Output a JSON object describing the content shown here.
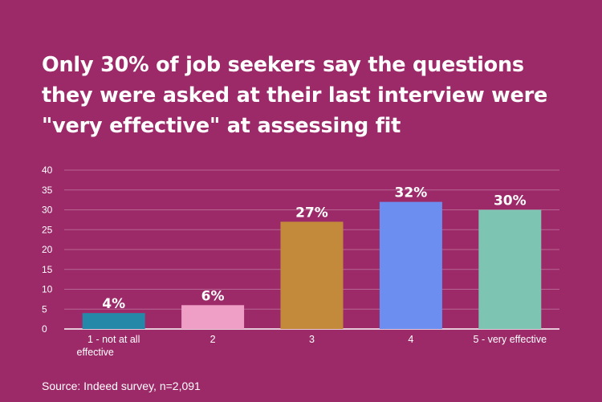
{
  "title": "Only 30% of job seekers say the questions they were asked at their last interview were \"very effective\" at assessing fit",
  "source": "Source: Indeed survey, n=2,091",
  "colors": {
    "background": "#9c2a69",
    "bars": [
      "#2489a8",
      "#ef9fc5",
      "#c28a3a",
      "#6b8ef0",
      "#7dc4b2"
    ]
  },
  "chart_data": {
    "type": "bar",
    "categories": [
      "1 - not at all effective",
      "2",
      "3",
      "4",
      "5 - very effective"
    ],
    "values": [
      4,
      6,
      27,
      32,
      30
    ],
    "data_labels": [
      "4%",
      "6%",
      "27%",
      "32%",
      "30%"
    ],
    "y_ticks": [
      0,
      5,
      10,
      15,
      20,
      25,
      30,
      35,
      40
    ],
    "ylim": [
      0,
      40
    ],
    "grid": true,
    "legend": "none",
    "title": "Only 30% of job seekers say the questions they were asked at their last interview were \"very effective\" at assessing fit",
    "xlabel": "",
    "ylabel": ""
  }
}
